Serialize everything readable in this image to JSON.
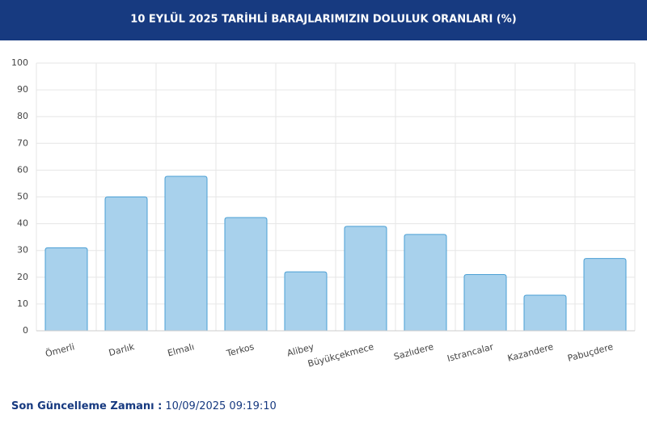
{
  "chart_data": {
    "type": "bar",
    "title": "10 EYLÜL 2025 TARİHLİ BARAJLARIMIZIN DOLULUK ORANLARI (%)",
    "categories": [
      "Ömerli",
      "Darlık",
      "Elmalı",
      "Terkos",
      "Alibey",
      "Büyükçekmece",
      "Sazlıdere",
      "Istrancalar",
      "Kazandere",
      "Pabuçdere"
    ],
    "values": [
      31,
      50,
      57.7,
      42.3,
      22,
      39,
      36,
      21,
      13.3,
      27
    ],
    "color": "#a8d1ec",
    "ylim": [
      0,
      100
    ],
    "yticks": [
      0,
      10,
      20,
      30,
      40,
      50,
      60,
      70,
      80,
      90,
      100
    ],
    "grid": true
  },
  "footer": {
    "label": "Son Güncelleme Zamanı :",
    "value": "10/09/2025 09:19:10"
  }
}
